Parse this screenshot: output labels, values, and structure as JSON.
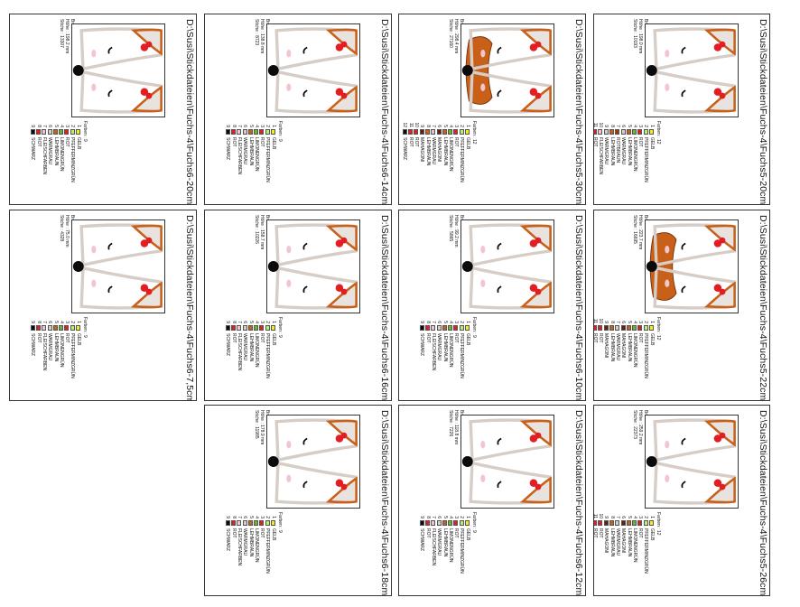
{
  "palette": {
    "GELB": "#f2f01c",
    "PFEFFERMINZGRÜN": "#b7f06d",
    "ROT": "#e31d24",
    "LIMONENGRÜN": "#6ab42e",
    "LEHMBRAUN": "#c8601a",
    "WARMGRAU": "#d6cdc6",
    "FLEISCHFARBEN": "#f3c6cf",
    "SCHWARZ": "#0b0b0b",
    "ROTBRAUN": "#9c3a12",
    "MAHAGONI": "#5e2310"
  },
  "colors_common": [
    {
      "n": "1",
      "name": "GELB"
    },
    {
      "n": "2",
      "name": "PFEFFERMINZGRÜN"
    },
    {
      "n": "3",
      "name": "ROT"
    },
    {
      "n": "4",
      "name": "LIMONENGRÜN"
    },
    {
      "n": "5",
      "name": "LEHMBRAUN"
    },
    {
      "n": "6",
      "name": "WARMGRAU"
    },
    {
      "n": "7",
      "name": "FLEISCHFARBEN"
    },
    {
      "n": "8",
      "name": "ROT"
    },
    {
      "n": "9",
      "name": "SCHWARZ"
    }
  ],
  "colors_12": [
    {
      "n": "1",
      "name": "GELB"
    },
    {
      "n": "2",
      "name": "PFEFFERMINZGRÜN"
    },
    {
      "n": "3",
      "name": "ROT"
    },
    {
      "n": "4",
      "name": "LIMONENGRÜN"
    },
    {
      "n": "5",
      "name": "LEHMBRAUN"
    },
    {
      "n": "6",
      "name": "WARMGRAU"
    },
    {
      "n": "7",
      "name": "ROTBRAUN"
    },
    {
      "n": "8",
      "name": "LEHMBRAUN"
    },
    {
      "n": "9",
      "name": "WARMGRAU"
    },
    {
      "n": "10",
      "name": "FLEISCHFARBEN"
    },
    {
      "n": "11",
      "name": "ROT"
    },
    {
      "n": "12",
      "name": "SCHWARZ"
    }
  ],
  "colors_mahagoni": [
    {
      "n": "1",
      "name": "GELB"
    },
    {
      "n": "2",
      "name": "PFEFFERMINZGRÜN"
    },
    {
      "n": "3",
      "name": "ROT"
    },
    {
      "n": "4",
      "name": "LIMONENGRÜN"
    },
    {
      "n": "5",
      "name": "LEHMBRAUN"
    },
    {
      "n": "6",
      "name": "MAHAGONI"
    },
    {
      "n": "7",
      "name": "WARMGRAU"
    },
    {
      "n": "8",
      "name": "LEHMBRAUN"
    },
    {
      "n": "9",
      "name": "MAHAGONI"
    },
    {
      "n": "10",
      "name": "ROT"
    },
    {
      "n": "11",
      "name": "ROT"
    },
    {
      "n": "12",
      "name": "SCHWARZ"
    }
  ],
  "cards": [
    {
      "id": "fuchs5-20",
      "title": "D:\\Susi\\Stickdateien\\Fuchs-4\\Fuchs5-20cm.pes",
      "width": "Breite : 132.4 mm",
      "height": "Höhe : 198.0 mm",
      "stitches": "Stiche : 10193",
      "farben": "Farben : 12",
      "colorset": "colors_12",
      "variant": "fox5"
    },
    {
      "id": "fuchs5-30",
      "title": "D:\\Susi\\Stickdateien\\Fuchs-4\\Fuchs5-30cm.pes",
      "width": "Breite : 198.7 mm",
      "height": "Höhe : 298.4 mm",
      "stitches": "Stiche : 27160",
      "farben": "Farben : 12",
      "colorset": "colors_mahagoni",
      "variant": "fox5b"
    },
    {
      "id": "fuchs6-14",
      "title": "D:\\Susi\\Stickdateien\\Fuchs-4\\Fuchs6-14cm.pes",
      "width": "Breite : 131.5 mm",
      "height": "Höhe : 138.8 mm",
      "stitches": "Stiche : 8723",
      "farben": "Farben : 9",
      "colorset": "colors_common",
      "variant": "fox6"
    },
    {
      "id": "fuchs6-20",
      "title": "D:\\Susi\\Stickdateien\\Fuchs-4\\Fuchs6-20cm.pes",
      "width": "Breite : 187.5 mm",
      "height": "Höhe : 198.2 mm",
      "stitches": "Stiche : 13307",
      "farben": "Farben : 9",
      "colorset": "colors_common",
      "variant": "fox6"
    },
    {
      "id": "fuchs5-22",
      "title": "D:\\Susi\\Stickdateien\\Fuchs-4\\Fuchs5-22cm.pes",
      "width": "Breite : 150.4 mm",
      "height": "Höhe : 223.7 mm",
      "stitches": "Stiche : 16695",
      "farben": "Farben : 12",
      "colorset": "colors_mahagoni",
      "variant": "fox5b"
    },
    {
      "id": "fuchs6-10",
      "title": "D:\\Susi\\Stickdateien\\Fuchs-4\\Fuchs6-10cm.pes",
      "width": "Breite : 93.6 mm",
      "height": "Höhe : 99.2 mm",
      "stitches": "Stiche : 5865",
      "farben": "Farben : 9",
      "colorset": "colors_common",
      "variant": "fox6"
    },
    {
      "id": "fuchs6-16",
      "title": "D:\\Susi\\Stickdateien\\Fuchs-4\\Fuchs6-16cm.pes",
      "width": "Breite : 150.2 mm",
      "height": "Höhe : 158.7 mm",
      "stitches": "Stiche : 10226",
      "farben": "Farben : 9",
      "colorset": "colors_common",
      "variant": "fox6"
    },
    {
      "id": "fuchs6-7-5",
      "title": "D:\\Susi\\Stickdateien\\Fuchs-4\\Fuchs6-7,5cm.pes",
      "width": "Breite : 71.0 mm",
      "height": "Höhe : 75.0 mm",
      "stitches": "Stiche : 4328",
      "farben": "Farben : 9",
      "colorset": "colors_common",
      "variant": "fox6"
    },
    {
      "id": "fuchs5-26",
      "title": "D:\\Susi\\Stickdateien\\Fuchs-4\\Fuchs5-26cm.pes",
      "width": "Breite : 174.1 mm",
      "height": "Höhe : 259.2 mm",
      "stitches": "Stiche : 22373",
      "farben": "Farben : 12",
      "colorset": "colors_mahagoni",
      "variant": "fox5"
    },
    {
      "id": "fuchs6-12",
      "title": "D:\\Susi\\Stickdateien\\Fuchs-4\\Fuchs6-12cm.pes",
      "width": "Breite : 112.6 mm",
      "height": "Höhe : 118.8 mm",
      "stitches": "Stiche : 7226",
      "farben": "Farben : 9",
      "colorset": "colors_common",
      "variant": "fox6"
    },
    {
      "id": "fuchs6-18",
      "title": "D:\\Susi\\Stickdateien\\Fuchs-4\\Fuchs6-18cm.pes",
      "width": "Breite : 170.3 mm",
      "height": "Höhe : 178.9 mm",
      "stitches": "Stiche : 11985",
      "farben": "Farben : 9",
      "colorset": "colors_common",
      "variant": "fox6"
    }
  ]
}
